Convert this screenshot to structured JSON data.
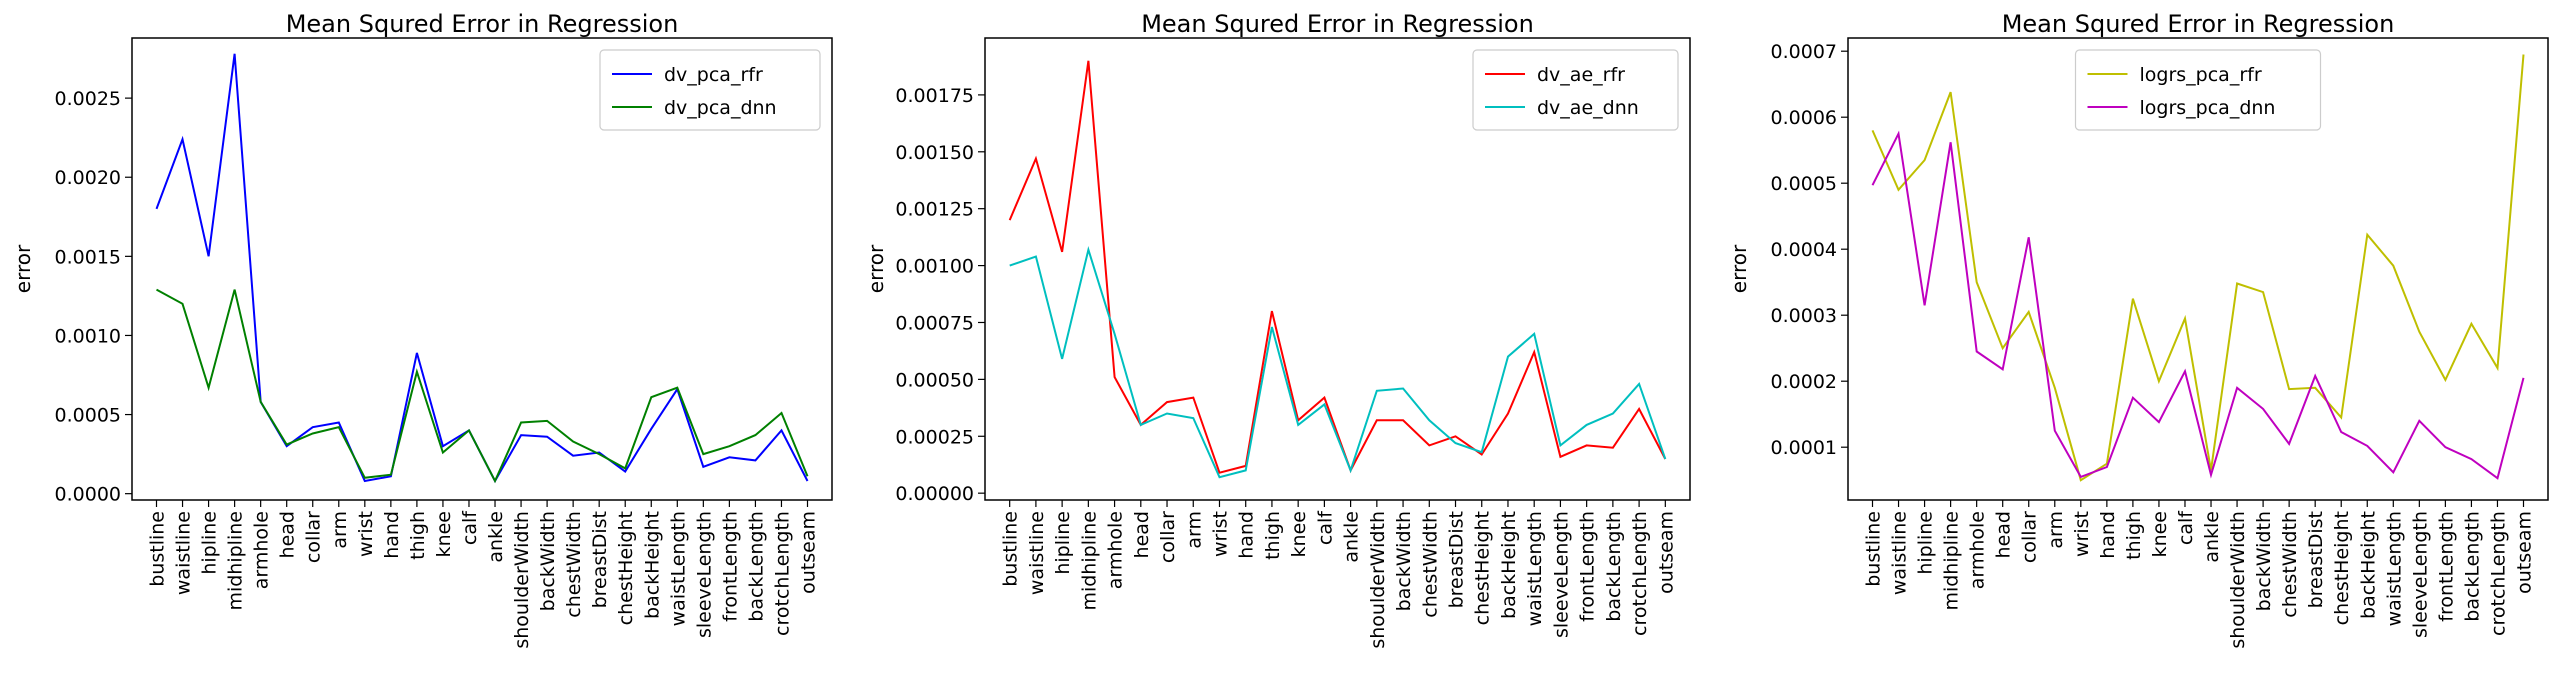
{
  "chart_data": [
    {
      "type": "line",
      "title": "Mean Squred Error in Regression",
      "xlabel": "",
      "ylabel": "error",
      "ylim": [
        -4e-05,
        0.00288
      ],
      "yticks": [
        0.0,
        0.0005,
        0.001,
        0.0015,
        0.002,
        0.0025
      ],
      "ytick_labels": [
        "0.0000",
        "0.0005",
        "0.0010",
        "0.0015",
        "0.0020",
        "0.0025"
      ],
      "legend_position": "top-right",
      "grid": false,
      "categories": [
        "bustline",
        "waistline",
        "hipline",
        "midhipline",
        "armhole",
        "head",
        "collar",
        "arm",
        "wrist",
        "hand",
        "thigh",
        "knee",
        "calf",
        "ankle",
        "shoulderWidth",
        "backWidth",
        "chestWidth",
        "breastDist",
        "chestHeight",
        "backHeight",
        "waistLength",
        "sleeveLength",
        "frontLength",
        "backLength",
        "crotchLength",
        "outseam"
      ],
      "series": [
        {
          "name": "dv_pca_rfr",
          "color": "#0000ff",
          "values": [
            0.0018,
            0.00224,
            0.0015,
            0.00278,
            0.00058,
            0.0003,
            0.00042,
            0.00045,
            8e-05,
            0.00011,
            0.00089,
            0.0003,
            0.0004,
            8e-05,
            0.00037,
            0.00036,
            0.00024,
            0.00026,
            0.00014,
            0.00041,
            0.00066,
            0.00017,
            0.00023,
            0.00021,
            0.0004,
            8e-05
          ]
        },
        {
          "name": "dv_pca_dnn",
          "color": "#008000",
          "values": [
            0.00129,
            0.0012,
            0.00067,
            0.00129,
            0.00058,
            0.00031,
            0.00038,
            0.00042,
            0.0001,
            0.00012,
            0.00077,
            0.00026,
            0.0004,
            8e-05,
            0.00045,
            0.00046,
            0.00033,
            0.00025,
            0.00016,
            0.00061,
            0.00067,
            0.00025,
            0.0003,
            0.00037,
            0.00051,
            0.00011
          ]
        }
      ]
    },
    {
      "type": "line",
      "title": "Mean Squred Error in Regression",
      "xlabel": "",
      "ylabel": "error",
      "ylim": [
        -3e-05,
        0.002
      ],
      "yticks": [
        0.0,
        0.00025,
        0.0005,
        0.00075,
        0.001,
        0.00125,
        0.0015,
        0.00175
      ],
      "ytick_labels": [
        "0.00000",
        "0.00025",
        "0.00050",
        "0.00075",
        "0.00100",
        "0.00125",
        "0.00150",
        "0.00175"
      ],
      "legend_position": "top-right",
      "grid": false,
      "categories": [
        "bustline",
        "waistline",
        "hipline",
        "midhipline",
        "armhole",
        "head",
        "collar",
        "arm",
        "wrist",
        "hand",
        "thigh",
        "knee",
        "calf",
        "ankle",
        "shoulderWidth",
        "backWidth",
        "chestWidth",
        "breastDist",
        "chestHeight",
        "backHeight",
        "waistLength",
        "sleeveLength",
        "frontLength",
        "backLength",
        "crotchLength",
        "outseam"
      ],
      "series": [
        {
          "name": "dv_ae_rfr",
          "color": "#ff0000",
          "values": [
            0.0012,
            0.00147,
            0.00106,
            0.0019,
            0.00051,
            0.0003,
            0.0004,
            0.00042,
            9e-05,
            0.00012,
            0.0008,
            0.00032,
            0.00042,
            0.0001,
            0.00032,
            0.00032,
            0.00021,
            0.00025,
            0.00017,
            0.00035,
            0.00062,
            0.00016,
            0.00021,
            0.0002,
            0.00037,
            0.00015
          ]
        },
        {
          "name": "dv_ae_dnn",
          "color": "#00bfbf",
          "values": [
            0.001,
            0.00104,
            0.00059,
            0.00107,
            0.0007,
            0.0003,
            0.00035,
            0.00033,
            7e-05,
            0.0001,
            0.00073,
            0.0003,
            0.00039,
            0.0001,
            0.00045,
            0.00046,
            0.00032,
            0.00022,
            0.00018,
            0.0006,
            0.0007,
            0.00021,
            0.0003,
            0.00035,
            0.00048,
            0.00015
          ]
        }
      ]
    },
    {
      "type": "line",
      "title": "Mean Squred Error in Regression",
      "xlabel": "",
      "ylabel": "error",
      "ylim": [
        2e-05,
        0.00072
      ],
      "yticks": [
        0.0001,
        0.0002,
        0.0003,
        0.0004,
        0.0005,
        0.0006,
        0.0007
      ],
      "ytick_labels": [
        "0.0001",
        "0.0002",
        "0.0003",
        "0.0004",
        "0.0005",
        "0.0006",
        "0.0007"
      ],
      "legend_position": "top-center",
      "grid": false,
      "categories": [
        "bustline",
        "waistline",
        "hipline",
        "midhipline",
        "armhole",
        "head",
        "collar",
        "arm",
        "wrist",
        "hand",
        "thigh",
        "knee",
        "calf",
        "ankle",
        "shoulderWidth",
        "backWidth",
        "chestWidth",
        "breastDist",
        "chestHeight",
        "backHeight",
        "waistLength",
        "sleeveLength",
        "frontLength",
        "backLength",
        "crotchLength",
        "outseam"
      ],
      "series": [
        {
          "name": "logrs_pca_rfr",
          "color": "#bfbf00",
          "values": [
            0.00058,
            0.00049,
            0.000535,
            0.000638,
            0.00035,
            0.00025,
            0.000305,
            0.00019,
            5e-05,
            7.5e-05,
            0.000325,
            0.0002,
            0.000295,
            6.5e-05,
            0.000348,
            0.000335,
            0.000188,
            0.00019,
            0.000145,
            0.000422,
            0.000375,
            0.000275,
            0.000202,
            0.000287,
            0.00022,
            0.000695
          ]
        },
        {
          "name": "logrs_pca_dnn",
          "color": "#bf00bf",
          "values": [
            0.000497,
            0.000575,
            0.000315,
            0.000562,
            0.000245,
            0.000218,
            0.000418,
            0.000125,
            5.5e-05,
            7e-05,
            0.000175,
            0.000138,
            0.000215,
            5.8e-05,
            0.00019,
            0.000158,
            0.000105,
            0.000208,
            0.000123,
            0.000102,
            6.2e-05,
            0.00014,
            0.0001,
            8.2e-05,
            5.3e-05,
            0.000205
          ]
        }
      ]
    }
  ]
}
